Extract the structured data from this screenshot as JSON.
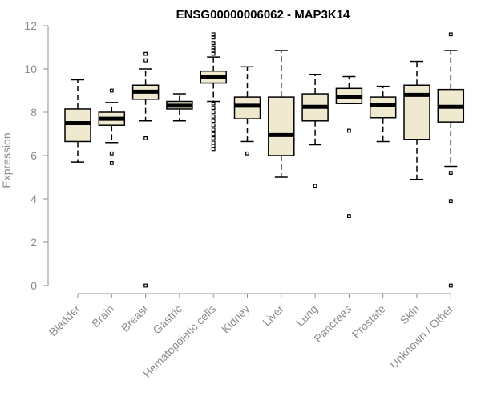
{
  "chart_data": {
    "type": "boxplot",
    "title": "ENSG00000006062 - MAP3K14",
    "xlabel": "",
    "ylabel": "Expression",
    "ylim": [
      0,
      12
    ],
    "yticks": [
      0,
      2,
      4,
      6,
      8,
      10,
      12
    ],
    "grid": false,
    "legend": "none",
    "colors": {
      "box_fill": "#efe9d0",
      "stroke": "#000000",
      "axis": "#8c8c8c"
    },
    "categories": [
      "Bladder",
      "Brain",
      "Breast",
      "Gastric",
      "Hematopoietic cells",
      "Kidney",
      "Liver",
      "Lung",
      "Pancreas",
      "Prostate",
      "Skin",
      "Unknown / Other"
    ],
    "boxes": [
      {
        "category": "Bladder",
        "whisker_low": 5.7,
        "q1": 6.65,
        "median": 7.5,
        "q3": 8.15,
        "whisker_high": 9.5,
        "outliers": []
      },
      {
        "category": "Brain",
        "whisker_low": 6.6,
        "q1": 7.4,
        "median": 7.7,
        "q3": 8.0,
        "whisker_high": 8.45,
        "outliers": [
          9.0,
          6.1,
          5.65
        ]
      },
      {
        "category": "Breast",
        "whisker_low": 7.6,
        "q1": 8.6,
        "median": 8.95,
        "q3": 9.25,
        "whisker_high": 10.0,
        "outliers": [
          10.7,
          10.4,
          6.8,
          0.0
        ]
      },
      {
        "category": "Gastric",
        "whisker_low": 7.6,
        "q1": 8.15,
        "median": 8.3,
        "q3": 8.5,
        "whisker_high": 8.85,
        "outliers": []
      },
      {
        "category": "Hematopoietic cells",
        "whisker_low": 8.5,
        "q1": 9.35,
        "median": 9.65,
        "q3": 9.9,
        "whisker_high": 10.55,
        "outliers": [
          11.6,
          11.45,
          11.2,
          11.0,
          10.85,
          10.7,
          8.4,
          8.2,
          8.0,
          7.8,
          7.6,
          7.4,
          7.2,
          7.0,
          6.8,
          6.6,
          6.45,
          6.3
        ]
      },
      {
        "category": "Kidney",
        "whisker_low": 6.65,
        "q1": 7.7,
        "median": 8.3,
        "q3": 8.7,
        "whisker_high": 10.1,
        "outliers": [
          6.1
        ]
      },
      {
        "category": "Liver",
        "whisker_low": 5.0,
        "q1": 6.0,
        "median": 6.95,
        "q3": 8.7,
        "whisker_high": 10.85,
        "outliers": []
      },
      {
        "category": "Lung",
        "whisker_low": 6.5,
        "q1": 7.6,
        "median": 8.25,
        "q3": 8.85,
        "whisker_high": 9.75,
        "outliers": [
          4.6
        ]
      },
      {
        "category": "Pancreas",
        "whisker_low": 8.4,
        "q1": 8.4,
        "median": 8.7,
        "q3": 9.1,
        "whisker_high": 9.65,
        "outliers": [
          7.15,
          3.2
        ]
      },
      {
        "category": "Prostate",
        "whisker_low": 6.65,
        "q1": 7.75,
        "median": 8.35,
        "q3": 8.7,
        "whisker_high": 9.2,
        "outliers": []
      },
      {
        "category": "Skin",
        "whisker_low": 4.9,
        "q1": 6.75,
        "median": 8.8,
        "q3": 9.25,
        "whisker_high": 10.35,
        "outliers": []
      },
      {
        "category": "Unknown / Other",
        "whisker_low": 5.5,
        "q1": 7.55,
        "median": 8.25,
        "q3": 9.05,
        "whisker_high": 10.85,
        "outliers": [
          11.6,
          5.2,
          3.9,
          0.0
        ]
      }
    ]
  }
}
